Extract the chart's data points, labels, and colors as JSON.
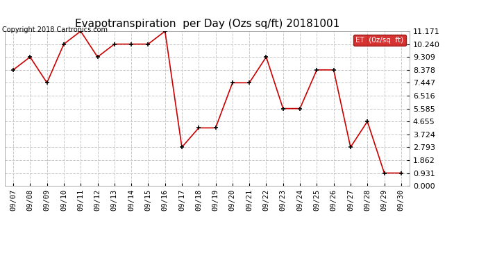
{
  "title": "Evapotranspiration  per Day (Ozs sq/ft) 20181001",
  "copyright": "Copyright 2018 Cartronics.com",
  "legend_label": "ET  (0z/sq  ft)",
  "dates": [
    "09/07",
    "09/08",
    "09/09",
    "09/10",
    "09/11",
    "09/12",
    "09/13",
    "09/14",
    "09/15",
    "09/16",
    "09/17",
    "09/18",
    "09/19",
    "09/20",
    "09/21",
    "09/22",
    "09/23",
    "09/24",
    "09/25",
    "09/26",
    "09/27",
    "09/28",
    "09/29",
    "09/30"
  ],
  "values": [
    8.378,
    9.309,
    7.447,
    10.24,
    11.171,
    9.309,
    10.24,
    10.24,
    10.24,
    11.171,
    2.793,
    4.19,
    4.19,
    7.447,
    7.447,
    9.309,
    5.585,
    5.585,
    8.378,
    8.378,
    2.793,
    4.655,
    0.931,
    0.931
  ],
  "yticks": [
    0.0,
    0.931,
    1.862,
    2.793,
    3.724,
    4.655,
    5.585,
    6.516,
    7.447,
    8.378,
    9.309,
    10.24,
    11.171
  ],
  "ylim": [
    0.0,
    11.171
  ],
  "line_color": "#cc0000",
  "marker": "+",
  "marker_color": "#000000",
  "grid_color": "#c8c8c8",
  "background_color": "#ffffff",
  "title_fontsize": 11,
  "copyright_fontsize": 7,
  "ytick_fontsize": 8,
  "xtick_fontsize": 7.5,
  "legend_bg": "#cc0000",
  "legend_text_color": "#ffffff",
  "legend_fontsize": 7.5
}
